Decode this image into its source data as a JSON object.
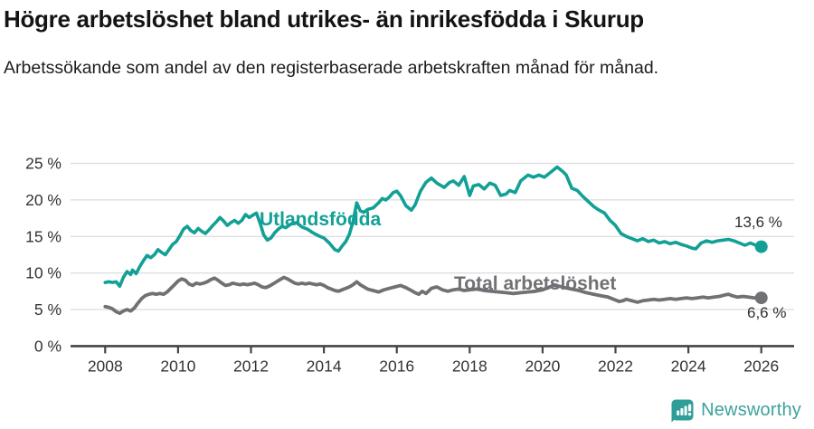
{
  "header": {
    "title": "Högre arbetslöshet bland utrikes- än inrikesfödda i Skurup",
    "subtitle": "Arbetssökande som andel av den registerbaserade arbetskraften månad för månad."
  },
  "footer": {
    "brand": "Newsworthy",
    "logo_icon": "speech-bubble-bar-chart-icon"
  },
  "colors": {
    "foreign_born_line": "#12a096",
    "total_line": "#707174",
    "grid": "#dcdcdc",
    "axis": "#454545",
    "tick_text": "#333333",
    "brand_teal": "#3ba29b"
  },
  "chart_data": {
    "type": "line",
    "title": "Högre arbetslöshet bland utrikes- än inrikesfödda i Skurup",
    "subtitle": "Arbetssökande som andel av den registerbaserade arbetskraften månad för månad.",
    "xlabel": "",
    "ylabel": "",
    "grid": "horizontal",
    "legend_position": "inline-labels",
    "xlim": [
      2007.05,
      2026.9
    ],
    "ylim": [
      0,
      26.3
    ],
    "x_ticks": [
      2008,
      2010,
      2012,
      2014,
      2016,
      2018,
      2020,
      2022,
      2024,
      2026
    ],
    "x_tick_labels": [
      "2008",
      "2010",
      "2012",
      "2014",
      "2016",
      "2018",
      "2020",
      "2022",
      "2024",
      "2026"
    ],
    "y_ticks": [
      0,
      5,
      10,
      15,
      20,
      25
    ],
    "y_tick_labels": [
      "0 %",
      "5 %",
      "10 %",
      "15 %",
      "20 %",
      "25 %"
    ],
    "series": [
      {
        "name": "Utlandsfödda",
        "color": "#12a096",
        "stroke_width": 3.6,
        "end_value": 13.6,
        "end_label": "13,6 %",
        "points": [
          [
            2008.0,
            8.7
          ],
          [
            2008.1,
            8.8
          ],
          [
            2008.2,
            8.7
          ],
          [
            2008.3,
            8.8
          ],
          [
            2008.4,
            8.2
          ],
          [
            2008.5,
            9.4
          ],
          [
            2008.6,
            10.2
          ],
          [
            2008.7,
            9.8
          ],
          [
            2008.75,
            10.4
          ],
          [
            2008.85,
            9.9
          ],
          [
            2008.95,
            10.9
          ],
          [
            2009.05,
            11.7
          ],
          [
            2009.15,
            12.4
          ],
          [
            2009.25,
            12.1
          ],
          [
            2009.35,
            12.5
          ],
          [
            2009.45,
            13.2
          ],
          [
            2009.55,
            12.8
          ],
          [
            2009.65,
            12.5
          ],
          [
            2009.75,
            13.2
          ],
          [
            2009.85,
            13.9
          ],
          [
            2009.95,
            14.3
          ],
          [
            2010.05,
            15.1
          ],
          [
            2010.15,
            16.0
          ],
          [
            2010.25,
            16.4
          ],
          [
            2010.35,
            15.8
          ],
          [
            2010.45,
            15.5
          ],
          [
            2010.55,
            16.1
          ],
          [
            2010.65,
            15.7
          ],
          [
            2010.75,
            15.4
          ],
          [
            2010.85,
            15.9
          ],
          [
            2010.95,
            16.5
          ],
          [
            2011.05,
            17.0
          ],
          [
            2011.15,
            17.6
          ],
          [
            2011.25,
            17.1
          ],
          [
            2011.35,
            16.5
          ],
          [
            2011.45,
            16.9
          ],
          [
            2011.55,
            17.2
          ],
          [
            2011.65,
            16.8
          ],
          [
            2011.75,
            17.2
          ],
          [
            2011.85,
            18.0
          ],
          [
            2011.95,
            17.6
          ],
          [
            2012.05,
            17.9
          ],
          [
            2012.15,
            18.2
          ],
          [
            2012.25,
            16.8
          ],
          [
            2012.35,
            15.2
          ],
          [
            2012.45,
            14.5
          ],
          [
            2012.55,
            14.8
          ],
          [
            2012.65,
            15.5
          ],
          [
            2012.75,
            16.0
          ],
          [
            2012.85,
            16.4
          ],
          [
            2012.95,
            16.2
          ],
          [
            2013.1,
            16.7
          ],
          [
            2013.25,
            16.9
          ],
          [
            2013.4,
            16.3
          ],
          [
            2013.55,
            16.0
          ],
          [
            2013.7,
            15.5
          ],
          [
            2013.85,
            15.1
          ],
          [
            2014.0,
            14.8
          ],
          [
            2014.15,
            14.1
          ],
          [
            2014.3,
            13.2
          ],
          [
            2014.4,
            13.0
          ],
          [
            2014.5,
            13.7
          ],
          [
            2014.6,
            14.3
          ],
          [
            2014.7,
            15.3
          ],
          [
            2014.8,
            17.0
          ],
          [
            2014.9,
            19.6
          ],
          [
            2015.0,
            18.5
          ],
          [
            2015.1,
            18.3
          ],
          [
            2015.2,
            18.7
          ],
          [
            2015.35,
            18.9
          ],
          [
            2015.5,
            19.6
          ],
          [
            2015.6,
            20.2
          ],
          [
            2015.7,
            20.0
          ],
          [
            2015.8,
            20.4
          ],
          [
            2015.9,
            21.0
          ],
          [
            2016.0,
            21.2
          ],
          [
            2016.1,
            20.6
          ],
          [
            2016.25,
            19.2
          ],
          [
            2016.4,
            18.6
          ],
          [
            2016.5,
            19.3
          ],
          [
            2016.65,
            21.2
          ],
          [
            2016.8,
            22.4
          ],
          [
            2016.95,
            23.0
          ],
          [
            2017.1,
            22.3
          ],
          [
            2017.3,
            21.7
          ],
          [
            2017.45,
            22.4
          ],
          [
            2017.55,
            22.6
          ],
          [
            2017.7,
            22.0
          ],
          [
            2017.85,
            23.2
          ],
          [
            2018.0,
            20.6
          ],
          [
            2018.1,
            21.9
          ],
          [
            2018.25,
            22.1
          ],
          [
            2018.4,
            21.5
          ],
          [
            2018.55,
            22.3
          ],
          [
            2018.7,
            22.0
          ],
          [
            2018.85,
            20.6
          ],
          [
            2019.0,
            20.8
          ],
          [
            2019.1,
            21.3
          ],
          [
            2019.25,
            21.0
          ],
          [
            2019.4,
            22.6
          ],
          [
            2019.6,
            23.4
          ],
          [
            2019.75,
            23.1
          ],
          [
            2019.9,
            23.4
          ],
          [
            2020.05,
            23.1
          ],
          [
            2020.2,
            23.7
          ],
          [
            2020.4,
            24.5
          ],
          [
            2020.55,
            23.9
          ],
          [
            2020.65,
            23.4
          ],
          [
            2020.8,
            21.6
          ],
          [
            2020.95,
            21.3
          ],
          [
            2021.1,
            20.5
          ],
          [
            2021.25,
            19.8
          ],
          [
            2021.4,
            19.1
          ],
          [
            2021.55,
            18.6
          ],
          [
            2021.7,
            18.2
          ],
          [
            2021.85,
            17.2
          ],
          [
            2022.0,
            16.5
          ],
          [
            2022.15,
            15.4
          ],
          [
            2022.3,
            15.0
          ],
          [
            2022.45,
            14.7
          ],
          [
            2022.6,
            14.4
          ],
          [
            2022.75,
            14.7
          ],
          [
            2022.9,
            14.3
          ],
          [
            2023.05,
            14.5
          ],
          [
            2023.2,
            14.1
          ],
          [
            2023.35,
            14.3
          ],
          [
            2023.5,
            14.0
          ],
          [
            2023.65,
            14.2
          ],
          [
            2023.8,
            13.9
          ],
          [
            2023.95,
            13.7
          ],
          [
            2024.1,
            13.4
          ],
          [
            2024.2,
            13.3
          ],
          [
            2024.35,
            14.1
          ],
          [
            2024.5,
            14.4
          ],
          [
            2024.65,
            14.2
          ],
          [
            2024.8,
            14.4
          ],
          [
            2024.95,
            14.5
          ],
          [
            2025.1,
            14.6
          ],
          [
            2025.25,
            14.4
          ],
          [
            2025.4,
            14.1
          ],
          [
            2025.55,
            13.8
          ],
          [
            2025.7,
            14.1
          ],
          [
            2025.85,
            13.8
          ],
          [
            2026.0,
            13.6
          ]
        ]
      },
      {
        "name": "Total arbetslöshet",
        "color": "#707174",
        "stroke_width": 3.8,
        "end_value": 6.6,
        "end_label": "6,6 %",
        "points": [
          [
            2008.0,
            5.4
          ],
          [
            2008.1,
            5.3
          ],
          [
            2008.2,
            5.1
          ],
          [
            2008.3,
            4.7
          ],
          [
            2008.4,
            4.5
          ],
          [
            2008.5,
            4.8
          ],
          [
            2008.6,
            5.0
          ],
          [
            2008.7,
            4.8
          ],
          [
            2008.8,
            5.2
          ],
          [
            2008.9,
            5.9
          ],
          [
            2009.0,
            6.5
          ],
          [
            2009.1,
            6.9
          ],
          [
            2009.2,
            7.1
          ],
          [
            2009.3,
            7.2
          ],
          [
            2009.4,
            7.1
          ],
          [
            2009.5,
            7.2
          ],
          [
            2009.6,
            7.1
          ],
          [
            2009.7,
            7.4
          ],
          [
            2009.8,
            7.9
          ],
          [
            2009.9,
            8.4
          ],
          [
            2010.0,
            8.9
          ],
          [
            2010.1,
            9.2
          ],
          [
            2010.2,
            9.0
          ],
          [
            2010.3,
            8.5
          ],
          [
            2010.4,
            8.3
          ],
          [
            2010.5,
            8.6
          ],
          [
            2010.6,
            8.5
          ],
          [
            2010.7,
            8.6
          ],
          [
            2010.8,
            8.8
          ],
          [
            2010.9,
            9.1
          ],
          [
            2011.0,
            9.3
          ],
          [
            2011.1,
            9.0
          ],
          [
            2011.2,
            8.6
          ],
          [
            2011.3,
            8.3
          ],
          [
            2011.4,
            8.4
          ],
          [
            2011.5,
            8.6
          ],
          [
            2011.6,
            8.5
          ],
          [
            2011.7,
            8.4
          ],
          [
            2011.8,
            8.5
          ],
          [
            2011.9,
            8.4
          ],
          [
            2012.0,
            8.5
          ],
          [
            2012.1,
            8.6
          ],
          [
            2012.2,
            8.4
          ],
          [
            2012.3,
            8.1
          ],
          [
            2012.4,
            8.0
          ],
          [
            2012.5,
            8.2
          ],
          [
            2012.6,
            8.5
          ],
          [
            2012.7,
            8.8
          ],
          [
            2012.8,
            9.1
          ],
          [
            2012.9,
            9.4
          ],
          [
            2013.0,
            9.2
          ],
          [
            2013.1,
            8.9
          ],
          [
            2013.2,
            8.6
          ],
          [
            2013.3,
            8.5
          ],
          [
            2013.4,
            8.6
          ],
          [
            2013.5,
            8.5
          ],
          [
            2013.6,
            8.6
          ],
          [
            2013.7,
            8.5
          ],
          [
            2013.8,
            8.4
          ],
          [
            2013.9,
            8.5
          ],
          [
            2014.0,
            8.3
          ],
          [
            2014.1,
            8.0
          ],
          [
            2014.2,
            7.8
          ],
          [
            2014.3,
            7.6
          ],
          [
            2014.4,
            7.5
          ],
          [
            2014.5,
            7.7
          ],
          [
            2014.6,
            7.9
          ],
          [
            2014.7,
            8.1
          ],
          [
            2014.8,
            8.4
          ],
          [
            2014.9,
            8.8
          ],
          [
            2015.0,
            8.4
          ],
          [
            2015.1,
            8.1
          ],
          [
            2015.2,
            7.8
          ],
          [
            2015.35,
            7.6
          ],
          [
            2015.5,
            7.4
          ],
          [
            2015.65,
            7.7
          ],
          [
            2015.8,
            7.9
          ],
          [
            2015.95,
            8.1
          ],
          [
            2016.1,
            8.3
          ],
          [
            2016.25,
            8.0
          ],
          [
            2016.4,
            7.6
          ],
          [
            2016.5,
            7.3
          ],
          [
            2016.6,
            7.1
          ],
          [
            2016.7,
            7.5
          ],
          [
            2016.8,
            7.2
          ],
          [
            2016.95,
            7.9
          ],
          [
            2017.1,
            8.1
          ],
          [
            2017.25,
            7.7
          ],
          [
            2017.4,
            7.5
          ],
          [
            2017.55,
            7.7
          ],
          [
            2017.7,
            7.8
          ],
          [
            2017.85,
            7.6
          ],
          [
            2018.0,
            7.7
          ],
          [
            2018.2,
            7.8
          ],
          [
            2018.4,
            7.6
          ],
          [
            2018.6,
            7.5
          ],
          [
            2018.8,
            7.4
          ],
          [
            2019.0,
            7.3
          ],
          [
            2019.2,
            7.2
          ],
          [
            2019.4,
            7.3
          ],
          [
            2019.6,
            7.4
          ],
          [
            2019.8,
            7.5
          ],
          [
            2020.0,
            7.7
          ],
          [
            2020.15,
            8.0
          ],
          [
            2020.3,
            8.3
          ],
          [
            2020.45,
            8.2
          ],
          [
            2020.6,
            8.0
          ],
          [
            2020.8,
            7.8
          ],
          [
            2021.0,
            7.6
          ],
          [
            2021.2,
            7.3
          ],
          [
            2021.4,
            7.1
          ],
          [
            2021.6,
            6.9
          ],
          [
            2021.8,
            6.7
          ],
          [
            2022.0,
            6.3
          ],
          [
            2022.1,
            6.1
          ],
          [
            2022.2,
            6.2
          ],
          [
            2022.3,
            6.4
          ],
          [
            2022.45,
            6.2
          ],
          [
            2022.6,
            6.0
          ],
          [
            2022.75,
            6.2
          ],
          [
            2022.9,
            6.3
          ],
          [
            2023.05,
            6.4
          ],
          [
            2023.2,
            6.3
          ],
          [
            2023.35,
            6.4
          ],
          [
            2023.5,
            6.5
          ],
          [
            2023.65,
            6.4
          ],
          [
            2023.8,
            6.5
          ],
          [
            2023.95,
            6.6
          ],
          [
            2024.1,
            6.5
          ],
          [
            2024.25,
            6.6
          ],
          [
            2024.4,
            6.7
          ],
          [
            2024.55,
            6.6
          ],
          [
            2024.7,
            6.7
          ],
          [
            2024.85,
            6.8
          ],
          [
            2025.0,
            7.0
          ],
          [
            2025.1,
            7.1
          ],
          [
            2025.2,
            6.9
          ],
          [
            2025.35,
            6.7
          ],
          [
            2025.5,
            6.8
          ],
          [
            2025.65,
            6.7
          ],
          [
            2025.8,
            6.6
          ],
          [
            2026.0,
            6.6
          ]
        ]
      }
    ],
    "inline_labels": [
      {
        "text": "Utlandsfödda",
        "series": "Utlandsfödda"
      },
      {
        "text": "Total arbetslöshet",
        "series": "Total arbetslöshet"
      }
    ]
  }
}
